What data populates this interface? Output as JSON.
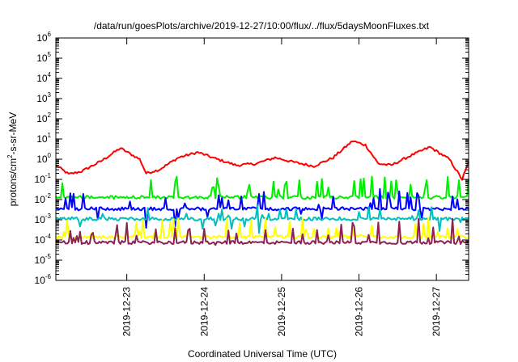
{
  "chart_data": {
    "type": "line",
    "title": "/data/run/goesPlots/archive/2019-12-27/10:00/flux/../flux/5daysMoonFluxes.txt",
    "xlabel": "Coordinated Universal Time (UTC)",
    "ylabel_parts": {
      "pre": "protons/cm",
      "sup": "2",
      "post": "-s-sr-MeV"
    },
    "yscale": "log",
    "ylim_exp": [
      -6,
      6
    ],
    "ytick_exps": [
      -6,
      -5,
      -4,
      -3,
      -2,
      -1,
      0,
      1,
      2,
      3,
      4,
      5,
      6
    ],
    "ytick_base": "10",
    "xlim": [
      "2019-12-22T02:00",
      "2019-12-27T10:00"
    ],
    "xticks": [
      {
        "t": "2019-12-23T00:00",
        "label": "2019-12-23"
      },
      {
        "t": "2019-12-24T00:00",
        "label": "2019-12-24"
      },
      {
        "t": "2019-12-25T00:00",
        "label": "2019-12-25"
      },
      {
        "t": "2019-12-26T00:00",
        "label": "2019-12-26"
      },
      {
        "t": "2019-12-27T00:00",
        "label": "2019-12-27"
      }
    ],
    "grid": false,
    "series": [
      {
        "color": "#ff0000",
        "base": [
          [
            "2019-12-22T02:00",
            0.5
          ],
          [
            "2019-12-22T06:00",
            0.18
          ],
          [
            "2019-12-22T10:00",
            0.25
          ],
          [
            "2019-12-22T16:00",
            0.8
          ],
          [
            "2019-12-22T22:00",
            3.5
          ],
          [
            "2019-12-23T04:00",
            1.0
          ],
          [
            "2019-12-23T06:00",
            0.2
          ],
          [
            "2019-12-23T10:00",
            0.3
          ],
          [
            "2019-12-23T16:00",
            1.2
          ],
          [
            "2019-12-23T22:00",
            2.2
          ],
          [
            "2019-12-24T04:00",
            1.0
          ],
          [
            "2019-12-24T10:00",
            0.5
          ],
          [
            "2019-12-24T16:00",
            0.6
          ],
          [
            "2019-12-24T22:00",
            1.2
          ],
          [
            "2019-12-25T04:00",
            0.7
          ],
          [
            "2019-12-25T10:00",
            0.45
          ],
          [
            "2019-12-25T16:00",
            1.2
          ],
          [
            "2019-12-25T22:00",
            8.0
          ],
          [
            "2019-12-26T02:00",
            5.0
          ],
          [
            "2019-12-26T06:00",
            0.6
          ],
          [
            "2019-12-26T10:00",
            0.5
          ],
          [
            "2019-12-26T16:00",
            1.5
          ],
          [
            "2019-12-26T22:00",
            4.0
          ],
          [
            "2019-12-27T04:00",
            1.0
          ],
          [
            "2019-12-27T08:00",
            0.1
          ],
          [
            "2019-12-27T10:00",
            0.7
          ]
        ]
      },
      {
        "color": "#00ee00",
        "base": [
          [
            "2019-12-22T02:00",
            0.013
          ],
          [
            "2019-12-27T10:00",
            0.013
          ]
        ],
        "spikes": [
          0.09,
          0.04,
          0.05,
          0.1
        ]
      },
      {
        "color": "#0000ff",
        "base": [
          [
            "2019-12-22T02:00",
            0.0035
          ],
          [
            "2019-12-27T10:00",
            0.0035
          ]
        ],
        "spikes": [
          0.006,
          0.0008,
          0.012,
          0.02
        ]
      },
      {
        "color": "#00bfbf",
        "base": [
          [
            "2019-12-22T02:00",
            0.0011
          ],
          [
            "2019-12-27T10:00",
            0.0011
          ]
        ],
        "spikes": [
          0.003,
          0.0006,
          0.002
        ]
      },
      {
        "color": "#ffff00",
        "base": [
          [
            "2019-12-22T02:00",
            0.00014
          ],
          [
            "2019-12-27T10:00",
            0.00014
          ]
        ],
        "spikes": [
          0.0004
        ]
      },
      {
        "color": "#8b2252",
        "base": [
          [
            "2019-12-22T02:00",
            7.5e-05
          ],
          [
            "2019-12-27T10:00",
            7.5e-05
          ]
        ],
        "spikes": [
          0.0004,
          0.0002
        ]
      }
    ]
  }
}
